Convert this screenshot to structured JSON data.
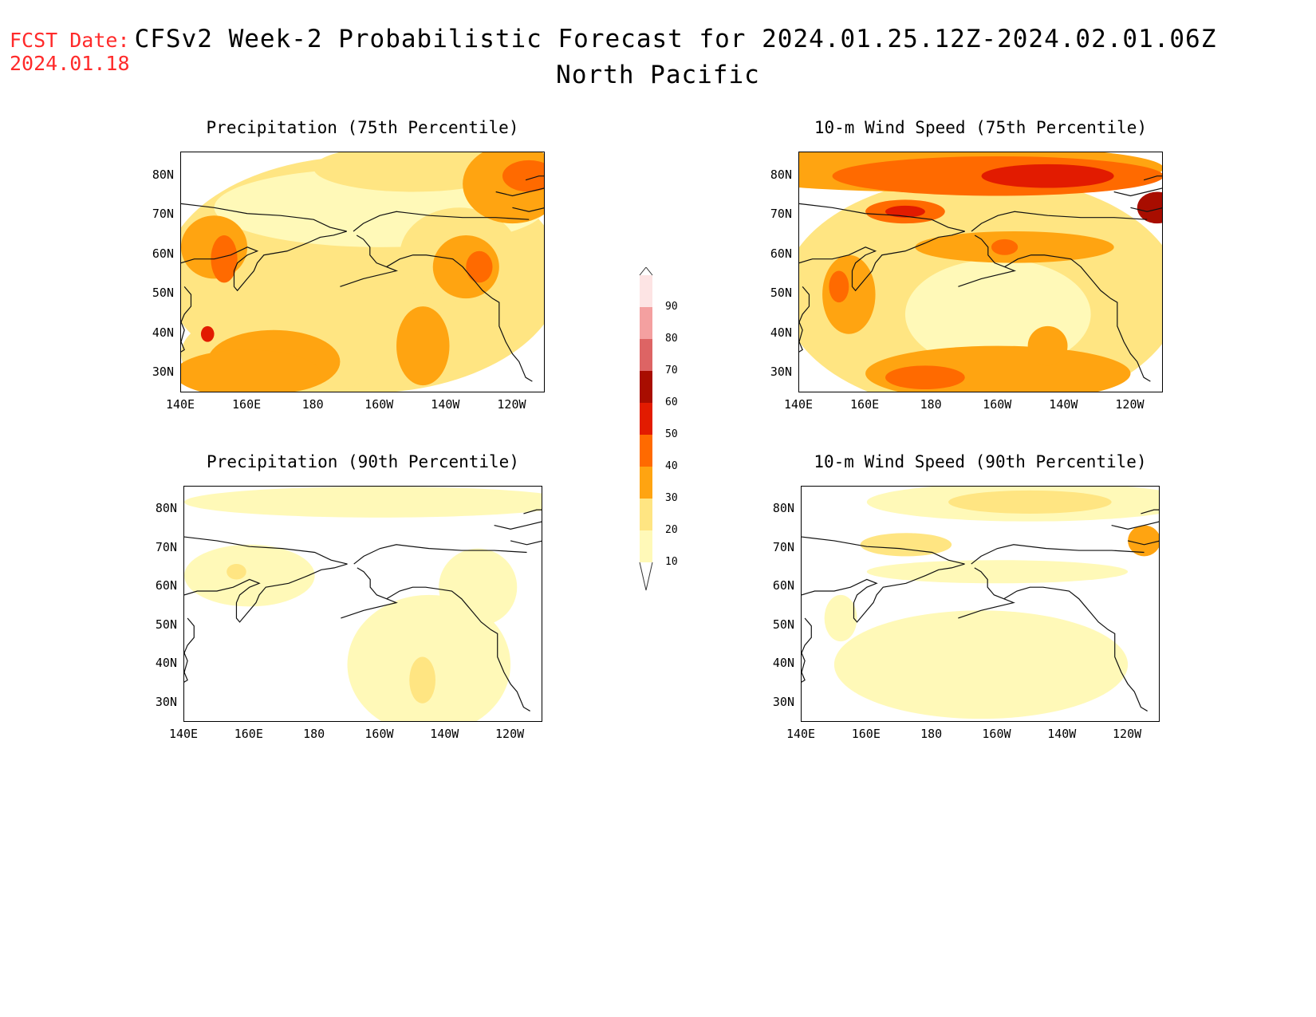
{
  "header": {
    "fcst_label": "FCST Date:",
    "fcst_date": "2024.01.18",
    "title": "CFSv2 Week-2 Probabilistic Forecast for 2024.01.25.12Z-2024.02.01.06Z",
    "region": "North Pacific"
  },
  "panels": [
    {
      "id": "precip75",
      "title": "Precipitation (75th Percentile)"
    },
    {
      "id": "wind75",
      "title": "10-m Wind Speed (75th Percentile)"
    },
    {
      "id": "precip90",
      "title": "Precipitation (90th Percentile)"
    },
    {
      "id": "wind90",
      "title": "10-m Wind Speed (90th Percentile)"
    }
  ],
  "axes": {
    "lat_labels": [
      "80N",
      "70N",
      "60N",
      "50N",
      "40N",
      "30N"
    ],
    "lon_labels": [
      "140E",
      "160E",
      "180",
      "160W",
      "140W",
      "120W"
    ]
  },
  "colorbar": {
    "levels": [
      "10",
      "20",
      "30",
      "40",
      "50",
      "60",
      "70",
      "80",
      "90"
    ],
    "colors": [
      "#fff9b8",
      "#ffe582",
      "#ffa411",
      "#ff6a00",
      "#e21b00",
      "#a80d00",
      "#dd6464",
      "#f4a0a0",
      "#fde4e4"
    ]
  }
}
